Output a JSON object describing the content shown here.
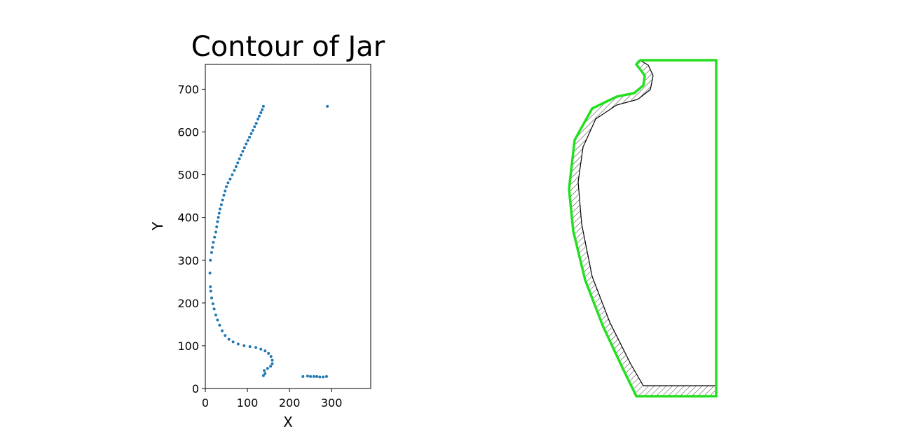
{
  "chart_data": {
    "type": "scatter",
    "title": "Contour of Jar",
    "x_label": "X",
    "y_label": "Y",
    "color": "#1f77b4",
    "x": [
      138,
      135,
      132,
      128,
      125,
      121,
      117,
      113,
      109,
      105,
      101,
      97,
      93,
      89,
      85,
      81,
      77,
      73,
      69,
      64,
      59,
      54,
      50,
      47,
      44,
      41,
      38,
      35,
      33,
      31,
      29,
      27,
      25,
      22,
      19,
      17,
      15,
      12,
      11,
      12,
      13,
      15,
      18,
      21,
      25,
      29,
      34,
      40,
      47,
      56,
      66,
      78,
      92,
      106,
      120,
      132,
      142,
      150,
      156,
      159,
      159,
      155,
      148,
      140,
      142,
      138,
      232,
      243,
      250,
      258,
      265,
      272,
      280,
      288,
      290
    ],
    "values": [
      660,
      652,
      645,
      637,
      630,
      620,
      612,
      604,
      596,
      588,
      580,
      572,
      563,
      555,
      546,
      537,
      528,
      519,
      510,
      500,
      490,
      481,
      472,
      462,
      452,
      441,
      430,
      420,
      410,
      400,
      390,
      378,
      366,
      354,
      342,
      330,
      318,
      300,
      270,
      238,
      228,
      212,
      198,
      186,
      172,
      160,
      148,
      135,
      124,
      115,
      109,
      104,
      100,
      98,
      96,
      92,
      88,
      82,
      75,
      66,
      58,
      52,
      47,
      42,
      35,
      30,
      28,
      29,
      28,
      28,
      28,
      27,
      27,
      28,
      660
    ],
    "xlim": [
      0,
      393
    ],
    "ylim": [
      0,
      758
    ],
    "xticks": [
      0,
      100,
      200,
      300
    ],
    "yticks": [
      0,
      100,
      200,
      300,
      400,
      500,
      600,
      700
    ]
  }
}
